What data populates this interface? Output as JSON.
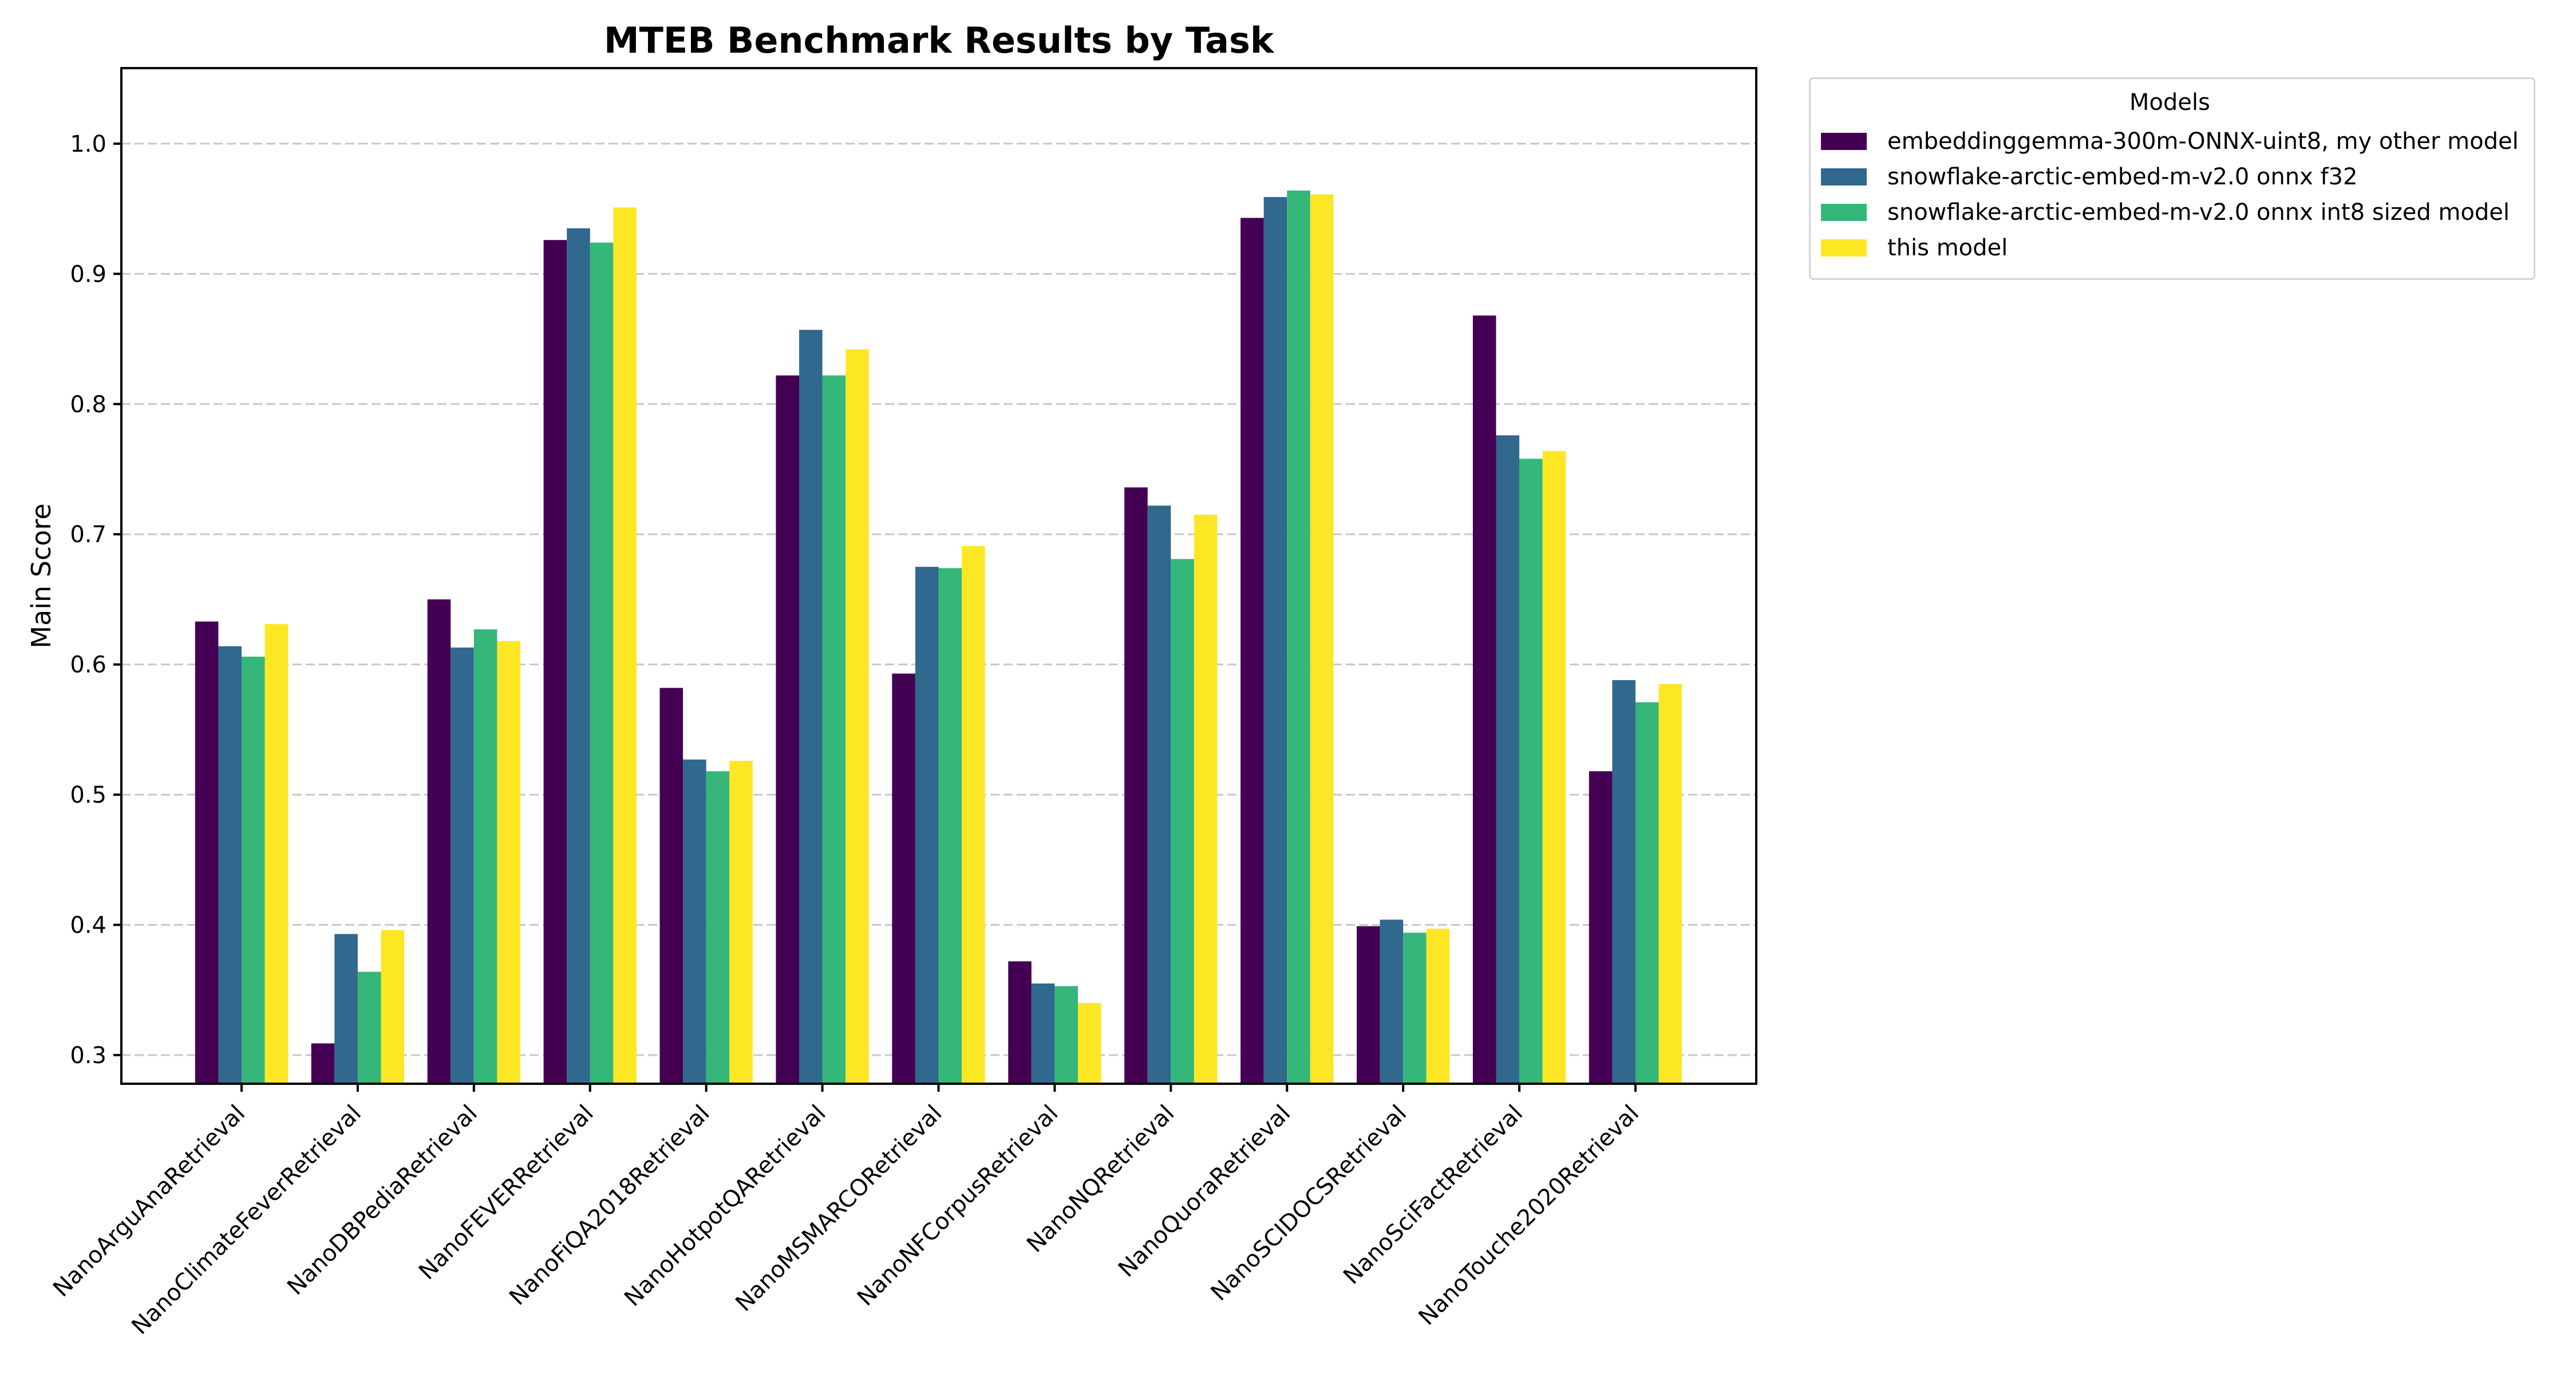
{
  "chart_data": {
    "type": "bar",
    "title": "MTEB Benchmark Results by Task",
    "xlabel": "",
    "ylabel": "Main Score",
    "ylim": [
      0.278,
      1.058
    ],
    "yticks": [
      0.3,
      0.4,
      0.5,
      0.6,
      0.7,
      0.8,
      0.9,
      1.0
    ],
    "ytick_labels": [
      "0.3",
      "0.4",
      "0.5",
      "0.6",
      "0.7",
      "0.8",
      "0.9",
      "1.0"
    ],
    "grid": {
      "axis": "y",
      "style": "dashed"
    },
    "legend_title": "Models",
    "legend_position": "outside upper right",
    "categories": [
      "NanoArguAnaRetrieval",
      "NanoClimateFeverRetrieval",
      "NanoDBPediaRetrieval",
      "NanoFEVERRetrieval",
      "NanoFiQA2018Retrieval",
      "NanoHotpotQARetrieval",
      "NanoMSMARCORetrieval",
      "NanoNFCorpusRetrieval",
      "NanoNQRetrieval",
      "NanoQuoraRetrieval",
      "NanoSCIDOCSRetrieval",
      "NanoSciFactRetrieval",
      "NanoTouche2020Retrieval"
    ],
    "series": [
      {
        "name": "embeddinggemma-300m-ONNX-uint8, my other model",
        "color": "#440154",
        "values": [
          0.633,
          0.309,
          0.65,
          0.926,
          0.582,
          0.822,
          0.593,
          0.372,
          0.736,
          0.943,
          0.399,
          0.868,
          0.518
        ]
      },
      {
        "name": "snowflake-arctic-embed-m-v2.0 onnx f32",
        "color": "#31688e",
        "values": [
          0.614,
          0.393,
          0.613,
          0.935,
          0.527,
          0.857,
          0.675,
          0.355,
          0.722,
          0.959,
          0.404,
          0.776,
          0.588
        ]
      },
      {
        "name": "snowflake-arctic-embed-m-v2.0 onnx int8 sized model",
        "color": "#35b779",
        "values": [
          0.606,
          0.364,
          0.627,
          0.924,
          0.518,
          0.822,
          0.674,
          0.353,
          0.681,
          0.964,
          0.394,
          0.758,
          0.571
        ]
      },
      {
        "name": "this model",
        "color": "#fde725",
        "values": [
          0.631,
          0.396,
          0.618,
          0.951,
          0.526,
          0.842,
          0.691,
          0.34,
          0.715,
          0.961,
          0.397,
          0.764,
          0.585
        ]
      }
    ]
  },
  "legend": {
    "title": "Models",
    "items": [
      {
        "label": "embeddinggemma-300m-ONNX-uint8, my other model",
        "color": "#440154"
      },
      {
        "label": "snowflake-arctic-embed-m-v2.0 onnx f32",
        "color": "#31688e"
      },
      {
        "label": "snowflake-arctic-embed-m-v2.0 onnx int8 sized model",
        "color": "#35b779"
      },
      {
        "label": "this model",
        "color": "#fde725"
      }
    ]
  }
}
